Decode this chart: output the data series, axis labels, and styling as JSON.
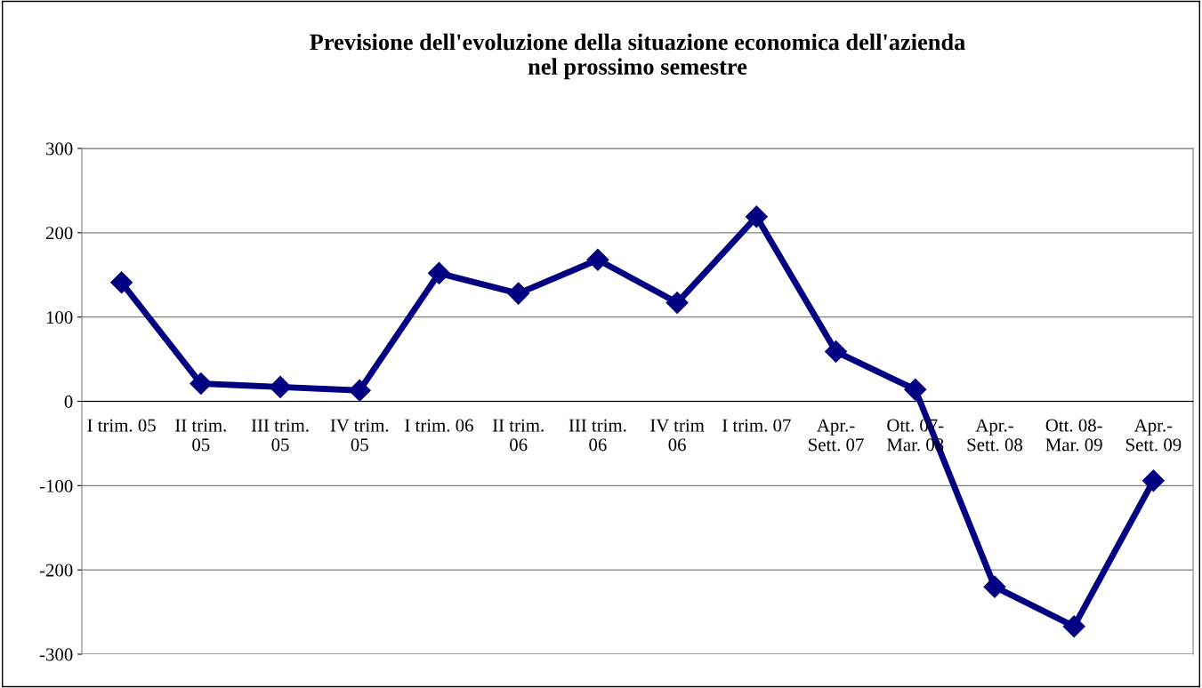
{
  "chart_data": {
    "type": "line",
    "title": "Previsione dell'evoluzione della situazione economica dell'azienda\nnel prossimo semestre",
    "categories": [
      "I trim. 05",
      "II trim.\n05",
      "III trim.\n05",
      "IV trim.\n05",
      "I trim. 06",
      "II trim.\n06",
      "III trim.\n06",
      "IV trim\n06",
      "I trim. 07",
      "Apr.-\nSett. 07",
      "Ott. 07-\nMar. 08",
      "Apr.-\nSett. 08",
      "Ott. 08-\nMar. 09",
      "Apr.-\nSett. 09"
    ],
    "series": [
      {
        "color": "#000080",
        "values": [
          141,
          21,
          17,
          13,
          152,
          128,
          168,
          117,
          219,
          59,
          14,
          -220,
          -267,
          -94
        ]
      }
    ],
    "ylim": [
      -300,
      300
    ],
    "yticks": [
      -300,
      -200,
      -100,
      0,
      100,
      200,
      300
    ],
    "grid": "y",
    "marker": "diamond",
    "line_style": "solid"
  }
}
